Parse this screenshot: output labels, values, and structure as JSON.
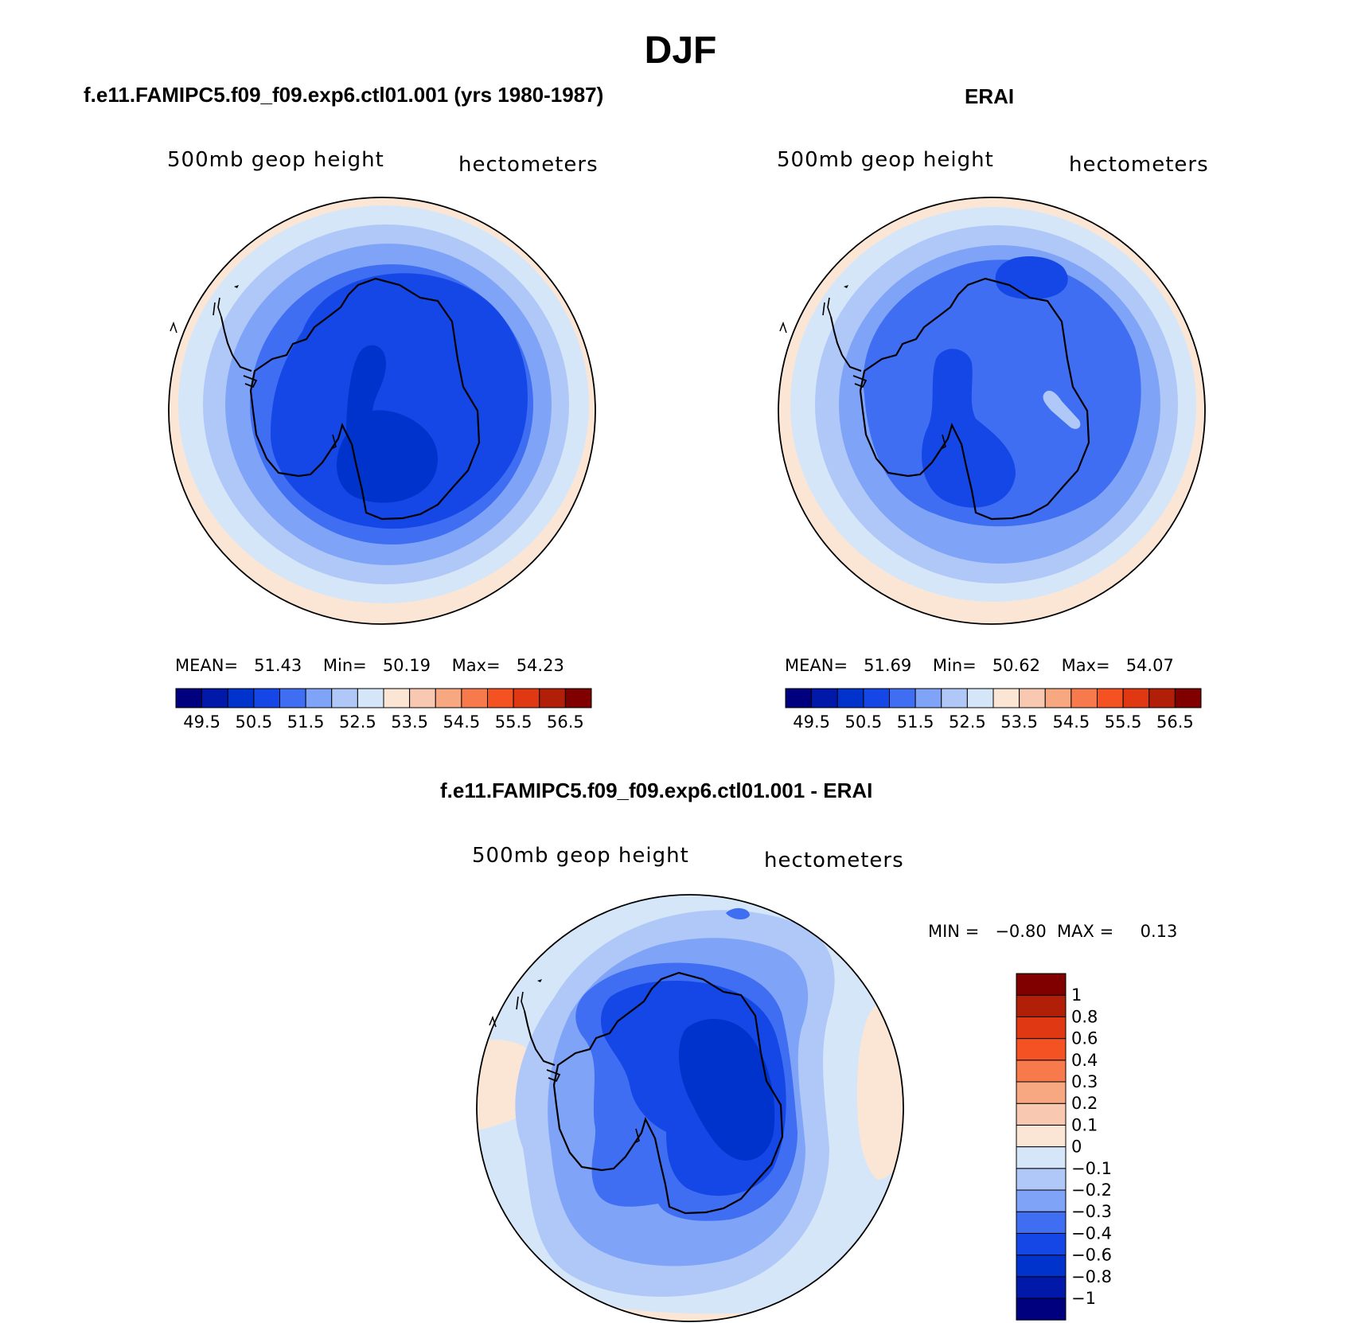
{
  "figure_title": "DJF",
  "panels": [
    {
      "title": "f.e11.FAMIPC5.f09_f09.exp6.ctl01.001 (yrs 1980-1987)",
      "variable": "500mb  geop  height",
      "units": "hectometers",
      "mean_label": "MEAN=",
      "mean": "51.43",
      "min_label": "Min=",
      "min": "50.19",
      "max_label": "Max=",
      "max": "54.23"
    },
    {
      "title": "ERAI",
      "variable": "500mb  geop  height",
      "units": "hectometers",
      "mean_label": "MEAN=",
      "mean": "51.69",
      "min_label": "Min=",
      "min": "50.62",
      "max_label": "Max=",
      "max": "54.07"
    },
    {
      "title": "f.e11.FAMIPC5.f09_f09.exp6.ctl01.001 - ERAI",
      "variable": "500mb  geop  height",
      "units": "hectometers",
      "min_label": "MIN =",
      "min": "−0.80",
      "max_label": "MAX =",
      "max": "0.13"
    }
  ],
  "colorbar_abs": {
    "colors": [
      "#00007f",
      "#0019a8",
      "#0033cc",
      "#1447e6",
      "#3f6ef2",
      "#7fa4f7",
      "#b0c8f8",
      "#d5e6f8",
      "#fbe6d6",
      "#f8c8b0",
      "#f8a880",
      "#f77a4c",
      "#f55223",
      "#e03812",
      "#b21f08",
      "#800000"
    ],
    "ticks": [
      "49.5",
      "50.5",
      "51.5",
      "52.5",
      "53.5",
      "54.5",
      "55.5",
      "56.5"
    ]
  },
  "colorbar_diff": {
    "colors": [
      "#00007f",
      "#0019a8",
      "#0033cc",
      "#1447e6",
      "#3f6ef2",
      "#7fa4f7",
      "#b0c8f8",
      "#d5e6f8",
      "#fbe6d6",
      "#f8c8b0",
      "#f8a880",
      "#f77a4c",
      "#f55223",
      "#e03812",
      "#b21f08",
      "#800000"
    ],
    "ticks": [
      "−1",
      "−0.8",
      "−0.6",
      "−0.4",
      "−0.3",
      "−0.2",
      "−0.1",
      "0",
      "0.1",
      "0.2",
      "0.3",
      "0.4",
      "0.6",
      "0.8",
      "1"
    ]
  }
}
